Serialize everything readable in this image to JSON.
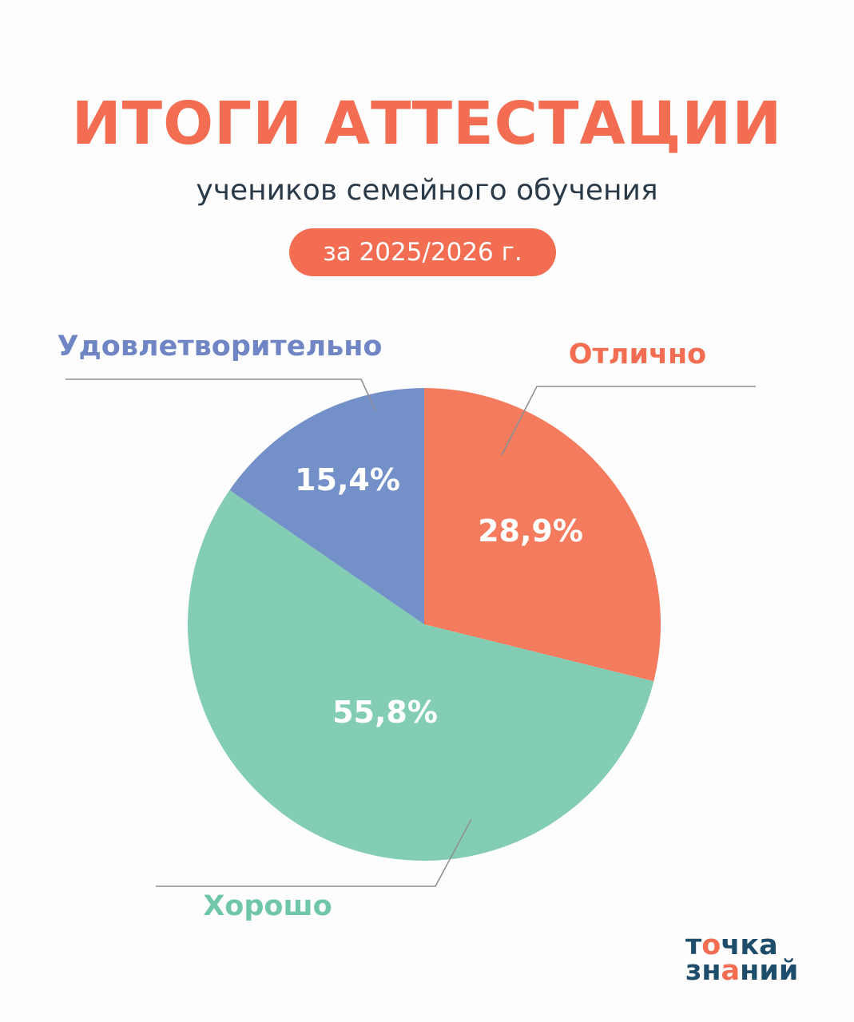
{
  "header": {
    "title": "ИТОГИ АТТЕСТАЦИИ",
    "subtitle": "учеников семейного обучения",
    "period": "за 2025/2026 г."
  },
  "chart_data": {
    "type": "pie",
    "title": "ИТОГИ АТТЕСТАЦИИ",
    "slices": [
      {
        "name": "Отлично",
        "value": 28.9,
        "label": "28,9%",
        "color": "#f47b5e"
      },
      {
        "name": "Хорошо",
        "value": 55.8,
        "label": "55,8%",
        "color": "#82cdb3"
      },
      {
        "name": "Удовлетворительно",
        "value": 15.4,
        "label": "15,4%",
        "color": "#7490c9"
      }
    ],
    "start_angle": "12 o'clock, clockwise",
    "legend": "callout labels outside the pie"
  },
  "category_colors": {
    "Отлично": "#f26d51",
    "Хорошо": "#6fc6a8",
    "Удовлетворительно": "#6f85c4"
  },
  "logo": {
    "line1": "точка",
    "line2": "знаний",
    "colors": [
      "#1e4d6b",
      "#f26d51"
    ]
  }
}
